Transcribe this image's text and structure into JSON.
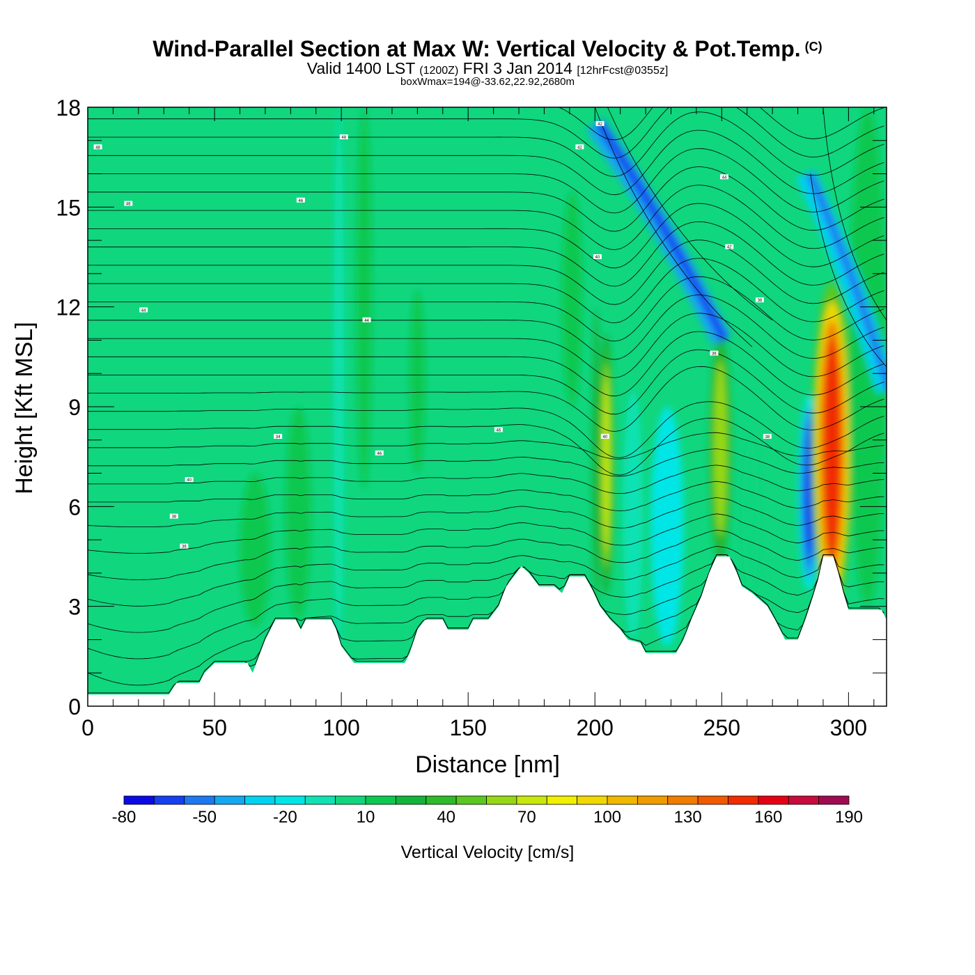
{
  "chart_data": {
    "type": "contour",
    "title": "Wind-Parallel Section at Max W: Vertical Velocity & Pot.Temp.",
    "title_mark": "(C)",
    "subtitle": {
      "valid": "Valid 1400 LST",
      "utc": "(1200Z)",
      "date": "FRI 3 Jan 2014",
      "forecast": "[12hrFcst@0355z]"
    },
    "subtitle2": "boxWmax=194@-33.62,22.92,2680m",
    "xlabel": "Distance [nm]",
    "ylabel": "Height [Kft MSL]",
    "xlim": [
      0,
      315
    ],
    "ylim": [
      0,
      18
    ],
    "xticks": [
      "0",
      "50",
      "100",
      "150",
      "200",
      "250",
      "300"
    ],
    "yticks": [
      "0",
      "3",
      "6",
      "9",
      "12",
      "15",
      "18"
    ],
    "colorbar": {
      "title": "Vertical Velocity [cm/s]",
      "min": -80,
      "max": 190,
      "step": 10,
      "labels": [
        "-80",
        "-50",
        "-20",
        "10",
        "40",
        "70",
        "100",
        "130",
        "160",
        "190"
      ],
      "colors": [
        "#0a0ae6",
        "#1440f0",
        "#1e78f0",
        "#14a8f0",
        "#00d2f0",
        "#00e6e6",
        "#10e2b4",
        "#10d67e",
        "#0cc850",
        "#14b43a",
        "#2eba2a",
        "#5ac820",
        "#96d814",
        "#c8e80c",
        "#f0f000",
        "#f0d800",
        "#f0b800",
        "#f09c00",
        "#f07c00",
        "#f05a00",
        "#f02c00",
        "#e60014",
        "#c80a3c",
        "#a00a50"
      ]
    },
    "terrain_kft": [
      [
        0,
        0.35
      ],
      [
        32,
        0.35
      ],
      [
        35,
        0.7
      ],
      [
        44,
        0.7
      ],
      [
        46,
        1.0
      ],
      [
        50,
        1.3
      ],
      [
        63,
        1.3
      ],
      [
        65,
        1.0
      ],
      [
        68,
        1.6
      ],
      [
        70,
        2.0
      ],
      [
        72,
        2.3
      ],
      [
        74,
        2.6
      ],
      [
        82,
        2.6
      ],
      [
        84,
        2.3
      ],
      [
        86,
        2.6
      ],
      [
        96,
        2.6
      ],
      [
        98,
        2.3
      ],
      [
        100,
        1.8
      ],
      [
        102,
        1.6
      ],
      [
        105,
        1.3
      ],
      [
        125,
        1.3
      ],
      [
        127,
        1.6
      ],
      [
        130,
        2.3
      ],
      [
        133,
        2.6
      ],
      [
        140,
        2.6
      ],
      [
        142,
        2.3
      ],
      [
        150,
        2.3
      ],
      [
        152,
        2.6
      ],
      [
        158,
        2.6
      ],
      [
        162,
        3.0
      ],
      [
        165,
        3.6
      ],
      [
        169,
        4.0
      ],
      [
        171,
        4.2
      ],
      [
        174,
        4.0
      ],
      [
        178,
        3.6
      ],
      [
        184,
        3.6
      ],
      [
        187,
        3.4
      ],
      [
        190,
        3.9
      ],
      [
        196,
        3.9
      ],
      [
        199,
        3.5
      ],
      [
        202,
        3.0
      ],
      [
        206,
        2.6
      ],
      [
        210,
        2.3
      ],
      [
        213,
        2.0
      ],
      [
        218,
        1.9
      ],
      [
        220,
        1.6
      ],
      [
        232,
        1.6
      ],
      [
        235,
        2.0
      ],
      [
        238,
        2.6
      ],
      [
        242,
        3.3
      ],
      [
        245,
        4.0
      ],
      [
        248,
        4.5
      ],
      [
        253,
        4.5
      ],
      [
        256,
        4.0
      ],
      [
        258,
        3.6
      ],
      [
        262,
        3.4
      ],
      [
        268,
        3.0
      ],
      [
        271,
        2.6
      ],
      [
        273,
        2.3
      ],
      [
        275,
        2.0
      ],
      [
        280,
        2.0
      ],
      [
        283,
        2.6
      ],
      [
        286,
        3.3
      ],
      [
        288,
        3.8
      ],
      [
        290,
        4.5
      ],
      [
        294,
        4.5
      ],
      [
        296,
        4.0
      ],
      [
        298,
        3.4
      ],
      [
        300,
        2.9
      ],
      [
        313,
        2.9
      ],
      [
        315,
        2.6
      ]
    ],
    "w_field": {
      "background": "#10d67e",
      "features": [
        {
          "type": "strip",
          "x": [
            60,
            72
          ],
          "y": [
            2.4,
            7.0
          ],
          "w": 12
        },
        {
          "type": "strip",
          "x": [
            78,
            88
          ],
          "y": [
            2.6,
            9.0
          ],
          "w": 12
        },
        {
          "type": "strip",
          "x": [
            97,
            101
          ],
          "y": [
            1.5,
            18.0
          ],
          "w": -10
        },
        {
          "type": "strip",
          "x": [
            106,
            112
          ],
          "y": [
            6.5,
            18.0
          ],
          "w": 10
        },
        {
          "type": "strip",
          "x": [
            127,
            133
          ],
          "y": [
            7.0,
            12.5
          ],
          "w": 15
        },
        {
          "type": "strip",
          "x": [
            187,
            195
          ],
          "y": [
            9.0,
            15.5
          ],
          "w": 15
        },
        {
          "type": "strip",
          "x": [
            199,
            202
          ],
          "y": [
            3.0,
            12.0
          ],
          "w": 30
        },
        {
          "type": "strip",
          "x": [
            202,
            207
          ],
          "y": [
            3.5,
            11.0
          ],
          "w": 70
        },
        {
          "type": "strip",
          "x": [
            211,
            219
          ],
          "y": [
            2.0,
            9.5
          ],
          "w": -10
        },
        {
          "type": "strip",
          "x": [
            222,
            235
          ],
          "y": [
            1.8,
            9.0
          ],
          "w": -20
        },
        {
          "type": "strip",
          "x": [
            246,
            253
          ],
          "y": [
            4.5,
            11.0
          ],
          "w": 65
        },
        {
          "type": "strip",
          "x": [
            258,
            265
          ],
          "y": [
            3.5,
            8.0
          ],
          "w": 5
        },
        {
          "type": "strip",
          "x": [
            281,
            288
          ],
          "y": [
            3.6,
            9.2
          ],
          "w": -60
        },
        {
          "type": "strip",
          "x": [
            287,
            300
          ],
          "y": [
            3.0,
            12.5
          ],
          "w": 155
        },
        {
          "type": "strip",
          "x": [
            300,
            315
          ],
          "y": [
            3.0,
            18.0
          ],
          "w": 15
        },
        {
          "type": "band",
          "x0": 200,
          "y0": 17.5,
          "x1": 250,
          "y1": 11.0,
          "w": -40
        },
        {
          "type": "band",
          "x0": 283,
          "y0": 16.0,
          "x1": 315,
          "y1": 9.5,
          "w": -30
        }
      ]
    },
    "contour_labels": [
      "48",
      "48",
      "46",
      "46",
      "44",
      "44",
      "42",
      "42",
      "40",
      "38",
      "36",
      "34",
      "46",
      "46",
      "44",
      "42",
      "40",
      "38",
      "36",
      "40",
      "38"
    ]
  }
}
